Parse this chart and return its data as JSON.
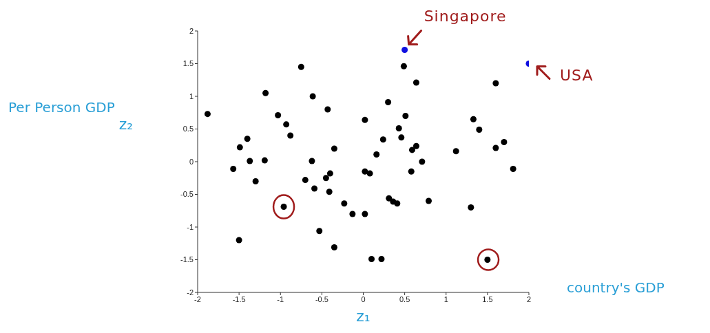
{
  "chart_data": {
    "type": "scatter",
    "xlabel": "z₁",
    "ylabel": "z₂",
    "xlim": [
      -2,
      2
    ],
    "xticks": [
      -2,
      -1.5,
      -1,
      -0.5,
      0,
      0.5,
      1,
      1.5,
      2
    ],
    "ylim": [
      -2,
      2
    ],
    "yticks": [
      -2,
      -1.5,
      -1,
      -0.5,
      0,
      0.5,
      1,
      1.5,
      2
    ],
    "grid": false,
    "legend": false,
    "marker": "circle",
    "series": [
      {
        "color": "#000000",
        "x": [
          -1.88,
          -1.57,
          -1.49,
          -1.4,
          -1.37,
          -1.3,
          -1.18,
          -1.19,
          -1.03,
          -0.93,
          -0.88,
          -0.96,
          -1.5,
          -0.75,
          -0.61,
          -0.43,
          -0.62,
          -0.7,
          -0.45,
          -0.4,
          -0.35,
          -0.59,
          -0.41,
          -0.53,
          -0.35,
          -0.23,
          -0.13,
          0.02,
          0.02,
          0.02,
          0.08,
          0.1,
          0.22,
          0.16,
          0.24,
          0.3,
          0.31,
          0.36,
          0.41,
          0.43,
          0.46,
          0.49,
          0.51,
          0.58,
          0.59,
          0.64,
          0.64,
          0.71,
          0.79,
          1.12,
          1.3,
          1.33,
          1.4,
          1.5,
          1.6,
          1.6,
          1.7,
          1.81
        ],
        "values": [
          0.73,
          -0.11,
          0.22,
          0.35,
          0.01,
          -0.3,
          1.05,
          0.02,
          0.71,
          0.57,
          0.4,
          -0.69,
          -1.2,
          1.45,
          1.0,
          0.8,
          0.01,
          -0.28,
          -0.25,
          -0.18,
          0.2,
          -0.41,
          -0.46,
          -1.06,
          -1.31,
          -0.64,
          -0.8,
          0.64,
          -0.8,
          -0.15,
          -0.18,
          -1.49,
          -1.49,
          0.11,
          0.34,
          0.91,
          -0.56,
          -0.61,
          -0.64,
          0.51,
          0.37,
          1.46,
          0.7,
          -0.15,
          0.18,
          0.24,
          1.21,
          0.0,
          -0.6,
          0.16,
          -0.7,
          0.65,
          0.49,
          -1.5,
          1.2,
          0.21,
          0.3,
          -0.11
        ]
      },
      {
        "color": "#1010e0",
        "x": [
          0.5,
          2
        ],
        "values": [
          1.71,
          1.5
        ]
      }
    ],
    "annotations": [
      "Per Person GDP",
      "country's GDP",
      {
        "text": "Singapore",
        "x": 0.5,
        "y": 1.71
      },
      {
        "text": "USA",
        "x": 2,
        "y": 1.5
      }
    ]
  }
}
